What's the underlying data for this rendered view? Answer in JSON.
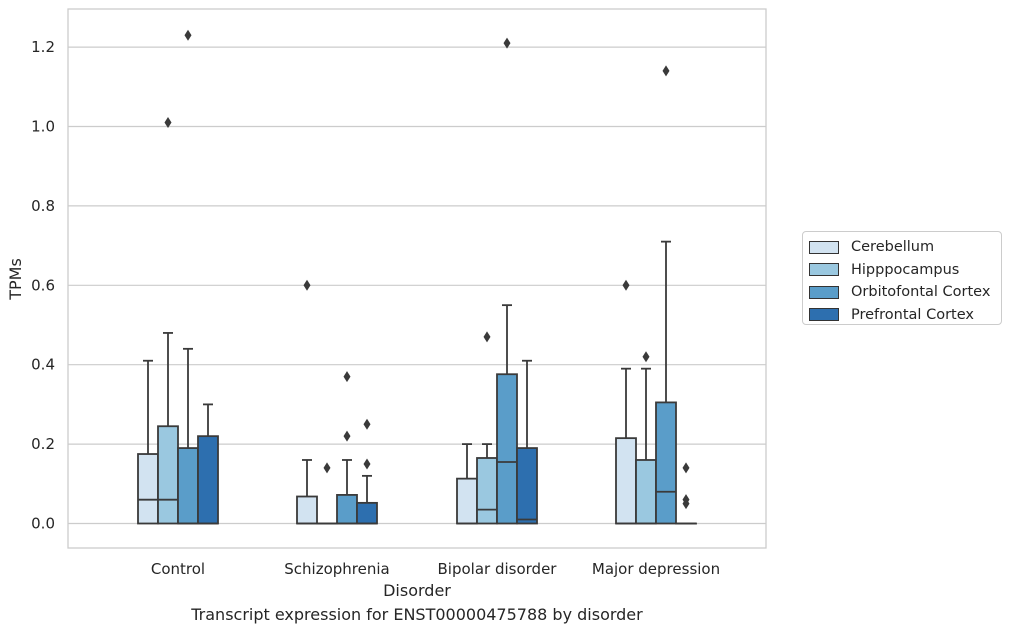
{
  "caption": "Transcript expression for ENST00000475788 by disorder",
  "chart_data": {
    "type": "box",
    "xlabel": "Disorder",
    "ylabel": "TPMs",
    "ylim": [
      -0.06,
      1.29
    ],
    "yticks": [
      "0.0",
      "0.2",
      "0.4",
      "0.6",
      "0.8",
      "1.0",
      "1.2"
    ],
    "grid": "horizontal",
    "legend_position": "right",
    "categories": [
      "Control",
      "Schizophrenia",
      "Bipolar disorder",
      "Major depression"
    ],
    "series": [
      {
        "name": "Cerebellum",
        "color": "#d2e3f1",
        "boxes": [
          {
            "whisker_low": 0,
            "q1": 0,
            "median": 0.06,
            "q3": 0.175,
            "whisker_high": 0.41,
            "outliers": []
          },
          {
            "whisker_low": 0,
            "q1": 0,
            "median": 0,
            "q3": 0.068,
            "whisker_high": 0.16,
            "outliers": [
              0.6
            ]
          },
          {
            "whisker_low": 0,
            "q1": 0,
            "median": 0,
            "q3": 0.113,
            "whisker_high": 0.2,
            "outliers": []
          },
          {
            "whisker_low": 0,
            "q1": 0,
            "median": 0,
            "q3": 0.215,
            "whisker_high": 0.39,
            "outliers": [
              0.6
            ]
          }
        ]
      },
      {
        "name": "Hipppocampus",
        "color": "#9ac8e0",
        "boxes": [
          {
            "whisker_low": 0,
            "q1": 0,
            "median": 0.06,
            "q3": 0.245,
            "whisker_high": 0.48,
            "outliers": [
              1.01
            ]
          },
          {
            "whisker_low": 0,
            "q1": 0,
            "median": 0,
            "q3": 0,
            "whisker_high": 0,
            "outliers": [
              0.14
            ]
          },
          {
            "whisker_low": 0,
            "q1": 0,
            "median": 0.035,
            "q3": 0.165,
            "whisker_high": 0.2,
            "outliers": [
              0.47
            ]
          },
          {
            "whisker_low": 0,
            "q1": 0,
            "median": 0,
            "q3": 0.16,
            "whisker_high": 0.39,
            "outliers": [
              0.42
            ]
          }
        ]
      },
      {
        "name": "Orbitofontal Cortex",
        "color": "#5a9dc9",
        "boxes": [
          {
            "whisker_low": 0,
            "q1": 0,
            "median": 0,
            "q3": 0.19,
            "whisker_high": 0.44,
            "outliers": [
              1.23
            ]
          },
          {
            "whisker_low": 0,
            "q1": 0,
            "median": 0,
            "q3": 0.072,
            "whisker_high": 0.16,
            "outliers": [
              0.22,
              0.37
            ]
          },
          {
            "whisker_low": 0,
            "q1": 0,
            "median": 0.155,
            "q3": 0.376,
            "whisker_high": 0.55,
            "outliers": [
              1.21
            ]
          },
          {
            "whisker_low": 0,
            "q1": 0,
            "median": 0.08,
            "q3": 0.305,
            "whisker_high": 0.71,
            "outliers": [
              1.14
            ]
          }
        ]
      },
      {
        "name": "Prefrontal Cortex",
        "color": "#2d6faf",
        "boxes": [
          {
            "whisker_low": 0,
            "q1": 0,
            "median": 0,
            "q3": 0.22,
            "whisker_high": 0.3,
            "outliers": []
          },
          {
            "whisker_low": 0,
            "q1": 0,
            "median": 0,
            "q3": 0.052,
            "whisker_high": 0.12,
            "outliers": [
              0.15,
              0.25
            ]
          },
          {
            "whisker_low": 0,
            "q1": 0,
            "median": 0.01,
            "q3": 0.19,
            "whisker_high": 0.41,
            "outliers": []
          },
          {
            "whisker_low": 0,
            "q1": 0,
            "median": 0,
            "q3": 0,
            "whisker_high": 0,
            "outliers": [
              0.05,
              0.06,
              0.14
            ]
          }
        ]
      }
    ]
  }
}
